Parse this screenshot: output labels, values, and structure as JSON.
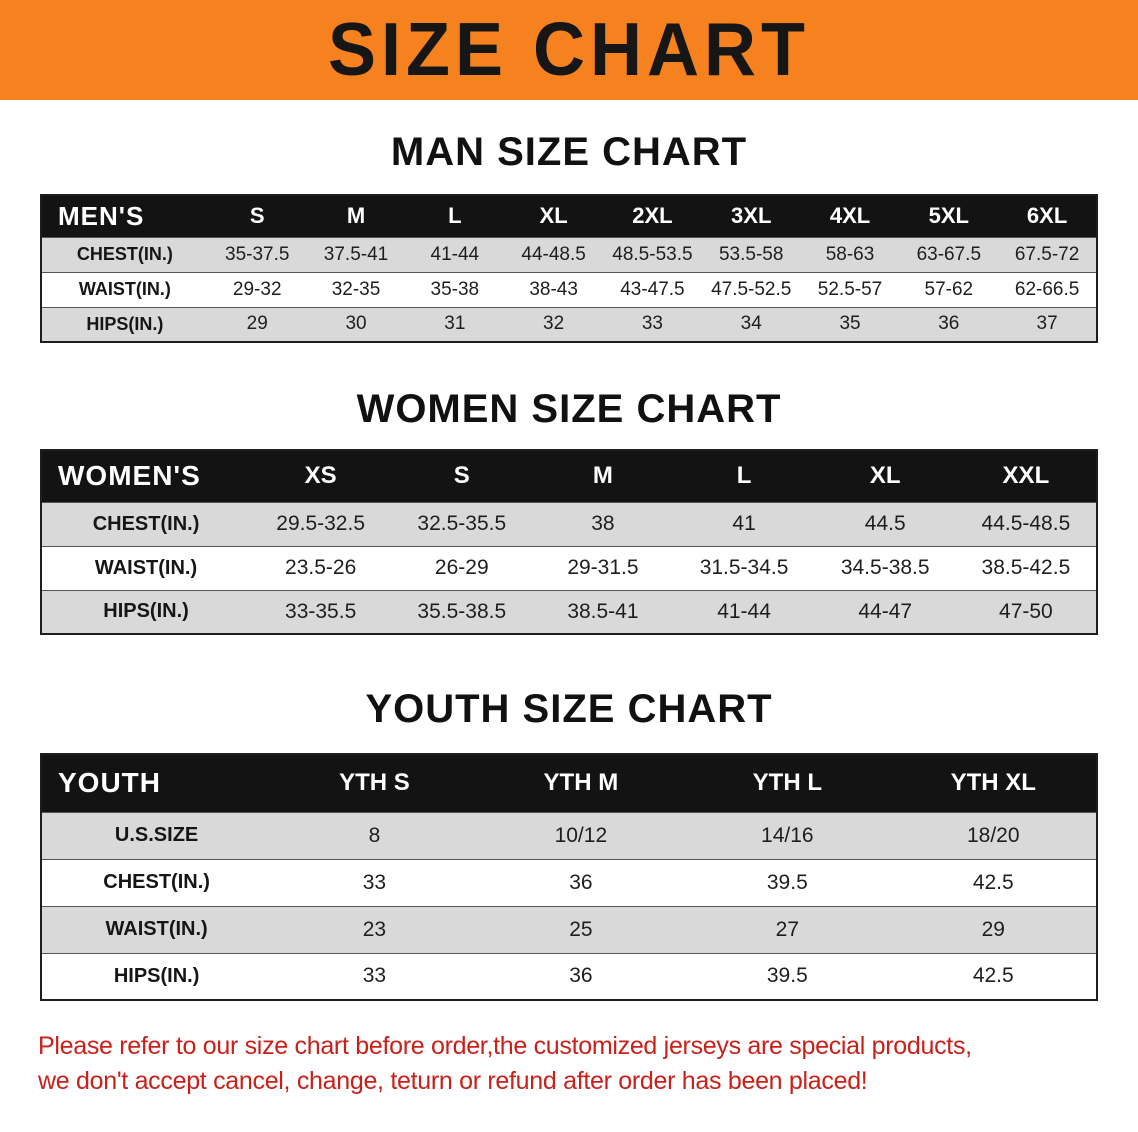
{
  "banner": {
    "title": "SIZE CHART",
    "background_color": "#f6821f"
  },
  "chart_data": [
    {
      "type": "table",
      "title": "MAN SIZE CHART",
      "group_label": "MEN'S",
      "columns": [
        "MEN'S",
        "S",
        "M",
        "L",
        "XL",
        "2XL",
        "3XL",
        "4XL",
        "5XL",
        "6XL"
      ],
      "rows": [
        [
          "CHEST(IN.)",
          "35-37.5",
          "37.5-41",
          "41-44",
          "44-48.5",
          "48.5-53.5",
          "53.5-58",
          "58-63",
          "63-67.5",
          "67.5-72"
        ],
        [
          "WAIST(IN.)",
          "29-32",
          "32-35",
          "35-38",
          "38-43",
          "43-47.5",
          "47.5-52.5",
          "52.5-57",
          "57-62",
          "62-66.5"
        ],
        [
          "HIPS(IN.)",
          "29",
          "30",
          "31",
          "32",
          "33",
          "34",
          "35",
          "36",
          "37"
        ]
      ]
    },
    {
      "type": "table",
      "title": "WOMEN SIZE CHART",
      "group_label": "WOMEN'S",
      "columns": [
        "WOMEN'S",
        "XS",
        "S",
        "M",
        "L",
        "XL",
        "XXL"
      ],
      "rows": [
        [
          "CHEST(IN.)",
          "29.5-32.5",
          "32.5-35.5",
          "38",
          "41",
          "44.5",
          "44.5-48.5"
        ],
        [
          "WAIST(IN.)",
          "23.5-26",
          "26-29",
          "29-31.5",
          "31.5-34.5",
          "34.5-38.5",
          "38.5-42.5"
        ],
        [
          "HIPS(IN.)",
          "33-35.5",
          "35.5-38.5",
          "38.5-41",
          "41-44",
          "44-47",
          "47-50"
        ]
      ]
    },
    {
      "type": "table",
      "title": "YOUTH SIZE CHART",
      "group_label": "YOUTH",
      "columns": [
        "YOUTH",
        "YTH S",
        "YTH M",
        "YTH L",
        "YTH XL"
      ],
      "rows": [
        [
          "U.S.SIZE",
          "8",
          "10/12",
          "14/16",
          "18/20"
        ],
        [
          "CHEST(IN.)",
          "33",
          "36",
          "39.5",
          "42.5"
        ],
        [
          "WAIST(IN.)",
          "23",
          "25",
          "27",
          "29"
        ],
        [
          "HIPS(IN.)",
          "33",
          "36",
          "39.5",
          "42.5"
        ]
      ]
    }
  ],
  "footer": {
    "line1": "Please refer to our size chart before order,the customized jerseys are special products,",
    "line2": "we don't accept cancel, change, teturn or refund after order has been placed!",
    "text_color": "#c9201a"
  }
}
